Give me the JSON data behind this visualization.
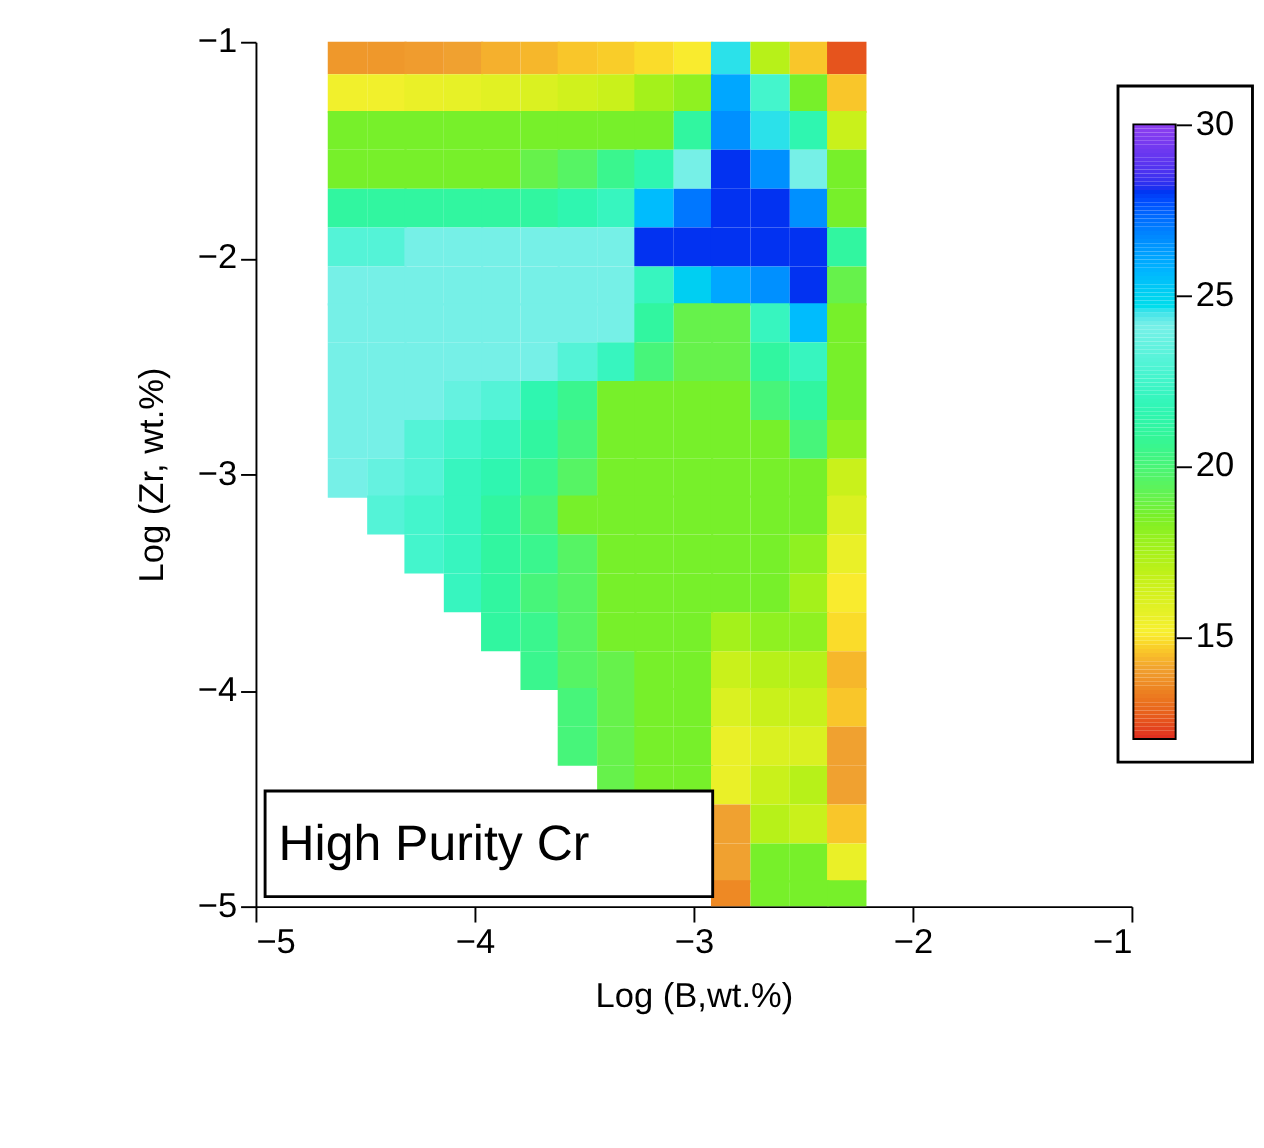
{
  "chart_data": {
    "type": "heatmap",
    "xlabel": "Log (B,wt.%)",
    "ylabel": "Log (Zr, wt.%)",
    "x": [
      -4.58,
      -4.4,
      -4.23,
      -4.05,
      -3.88,
      -3.7,
      -3.53,
      -3.35,
      -3.18,
      -3.0,
      -2.83,
      -2.65,
      -2.47,
      -2.3
    ],
    "y": [
      -1.06,
      -1.24,
      -1.41,
      -1.59,
      -1.77,
      -1.95,
      -2.13,
      -2.3,
      -2.48,
      -2.66,
      -2.84,
      -3.02,
      -3.19,
      -3.37,
      -3.55,
      -3.73,
      -3.91,
      -4.08,
      -4.26,
      -4.44,
      -4.62,
      -4.8,
      -4.97
    ],
    "cells": [
      [
        13.8,
        13.8,
        13.9,
        14,
        14.2,
        14.3,
        14.5,
        14.6,
        14.8,
        15,
        24.5,
        17,
        14.5,
        12.5
      ],
      [
        15.3,
        15.3,
        15.5,
        15.6,
        15.8,
        16,
        16.3,
        16.5,
        17.5,
        18,
        26,
        22.5,
        18.5,
        14.5
      ],
      [
        18.5,
        18.5,
        18.5,
        18.5,
        18.5,
        18.5,
        18.5,
        18.5,
        18.5,
        21,
        26.5,
        24.5,
        21.5,
        16.5
      ],
      [
        18.5,
        18.5,
        18.5,
        18.5,
        18.5,
        19,
        19.5,
        20.5,
        21.5,
        24,
        28,
        26.5,
        24,
        18.5
      ],
      [
        21,
        21,
        21,
        21,
        21,
        21,
        21.5,
        22,
        25.5,
        27,
        28,
        28,
        26.5,
        18.5
      ],
      [
        23,
        23,
        24,
        24,
        24,
        24,
        24,
        24,
        28,
        28,
        28,
        28,
        28,
        21
      ],
      [
        24,
        24,
        24,
        24,
        24,
        24,
        24,
        24,
        22,
        25,
        26,
        26.5,
        28,
        19
      ],
      [
        24,
        24,
        24,
        24,
        24,
        24,
        24,
        24,
        21,
        19,
        19,
        22,
        25.5,
        18.5
      ],
      [
        24,
        24,
        24,
        24,
        24,
        24,
        23,
        22,
        20,
        19,
        19,
        21,
        22,
        18.5
      ],
      [
        24,
        24,
        24,
        23.5,
        23,
        21.5,
        20.5,
        18.5,
        18.5,
        18.5,
        18.5,
        20,
        21,
        18.5
      ],
      [
        24,
        24,
        23,
        22.5,
        22,
        21,
        20,
        18.5,
        18.5,
        18.5,
        18.5,
        18.5,
        20,
        18
      ],
      [
        24,
        23.5,
        23,
        22,
        21.5,
        20.5,
        19.5,
        18.5,
        18.5,
        18.5,
        18.5,
        18.5,
        18.5,
        16.5
      ],
      [
        null,
        23,
        22.5,
        22,
        21,
        20,
        18.5,
        18.5,
        18.5,
        18.5,
        18.5,
        18.5,
        18.5,
        16
      ],
      [
        null,
        null,
        22.5,
        22,
        21,
        20.5,
        19.5,
        18.5,
        18.5,
        18.5,
        18.5,
        18.5,
        18,
        15.5
      ],
      [
        null,
        null,
        null,
        22,
        21,
        20,
        19.5,
        18.5,
        18.5,
        18.5,
        18.5,
        18.5,
        17.5,
        15
      ],
      [
        null,
        null,
        null,
        null,
        21,
        20.5,
        19.5,
        18.5,
        18.5,
        18.5,
        17.5,
        18,
        18,
        14.8
      ],
      [
        null,
        null,
        null,
        null,
        null,
        20.5,
        19.5,
        19,
        18.5,
        18.5,
        16.5,
        17,
        17,
        14.3
      ],
      [
        null,
        null,
        null,
        null,
        null,
        null,
        20,
        19,
        18.5,
        18.5,
        16,
        16.5,
        16.5,
        14.5
      ],
      [
        null,
        null,
        null,
        null,
        null,
        null,
        20,
        19,
        18.5,
        18.5,
        15.5,
        16,
        16,
        14
      ],
      [
        null,
        null,
        null,
        null,
        null,
        null,
        null,
        19,
        18.5,
        18.5,
        15.5,
        16.5,
        17,
        14
      ],
      [
        null,
        null,
        null,
        null,
        null,
        null,
        null,
        null,
        null,
        null,
        14,
        17,
        16.5,
        14.5
      ],
      [
        null,
        null,
        null,
        null,
        null,
        null,
        null,
        null,
        null,
        null,
        14,
        18.5,
        18.5,
        15.5
      ],
      [
        null,
        null,
        null,
        null,
        null,
        null,
        null,
        null,
        null,
        null,
        13.5,
        18.5,
        18.5,
        18.5
      ]
    ],
    "xlim": [
      -5,
      -1
    ],
    "xticks": [
      -5,
      -4,
      -3,
      -2,
      -1
    ],
    "ylim": [
      -5,
      -1
    ],
    "yticks": [
      -5,
      -4,
      -3,
      -2,
      -1
    ],
    "clim": [
      12,
      30
    ],
    "cticks": [
      15,
      20,
      25,
      30
    ],
    "grid": false,
    "annotations": [
      "High Purity Cr"
    ]
  }
}
